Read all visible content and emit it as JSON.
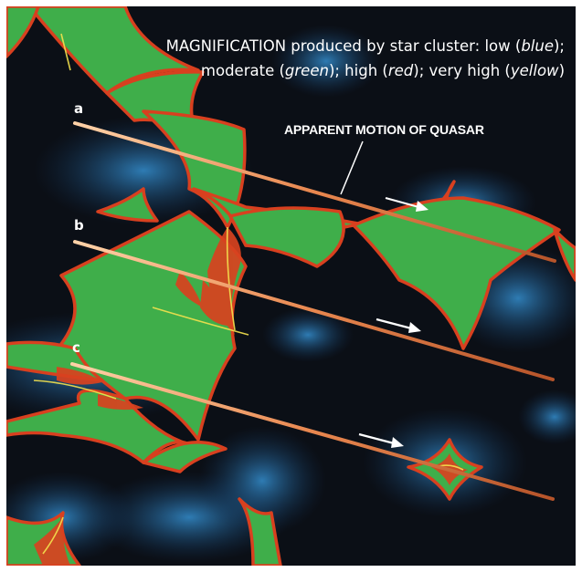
{
  "caption": {
    "magnification_word": "MAGNIFICATION",
    "line1_text": " produced by star cluster: low (",
    "low_color_word": "blue",
    "line1_end": ");",
    "line2_start": "moderate (",
    "moderate_color_word": "green",
    "line2_mid1": "); high (",
    "high_color_word": "red",
    "line2_mid2": "); very high (",
    "very_high_color_word": "yellow",
    "line2_end": ")"
  },
  "tracks": [
    {
      "label": "a"
    },
    {
      "label": "b"
    },
    {
      "label": "c"
    }
  ],
  "motion_label": "APPARENT MOTION OF QUASAR",
  "colors": {
    "background": "#0b0f16",
    "low": "#1d5fb3",
    "moderate": "#3fb04a",
    "high": "#d8401f",
    "very_high": "#f4e04a",
    "track_line": "#f0a070"
  }
}
